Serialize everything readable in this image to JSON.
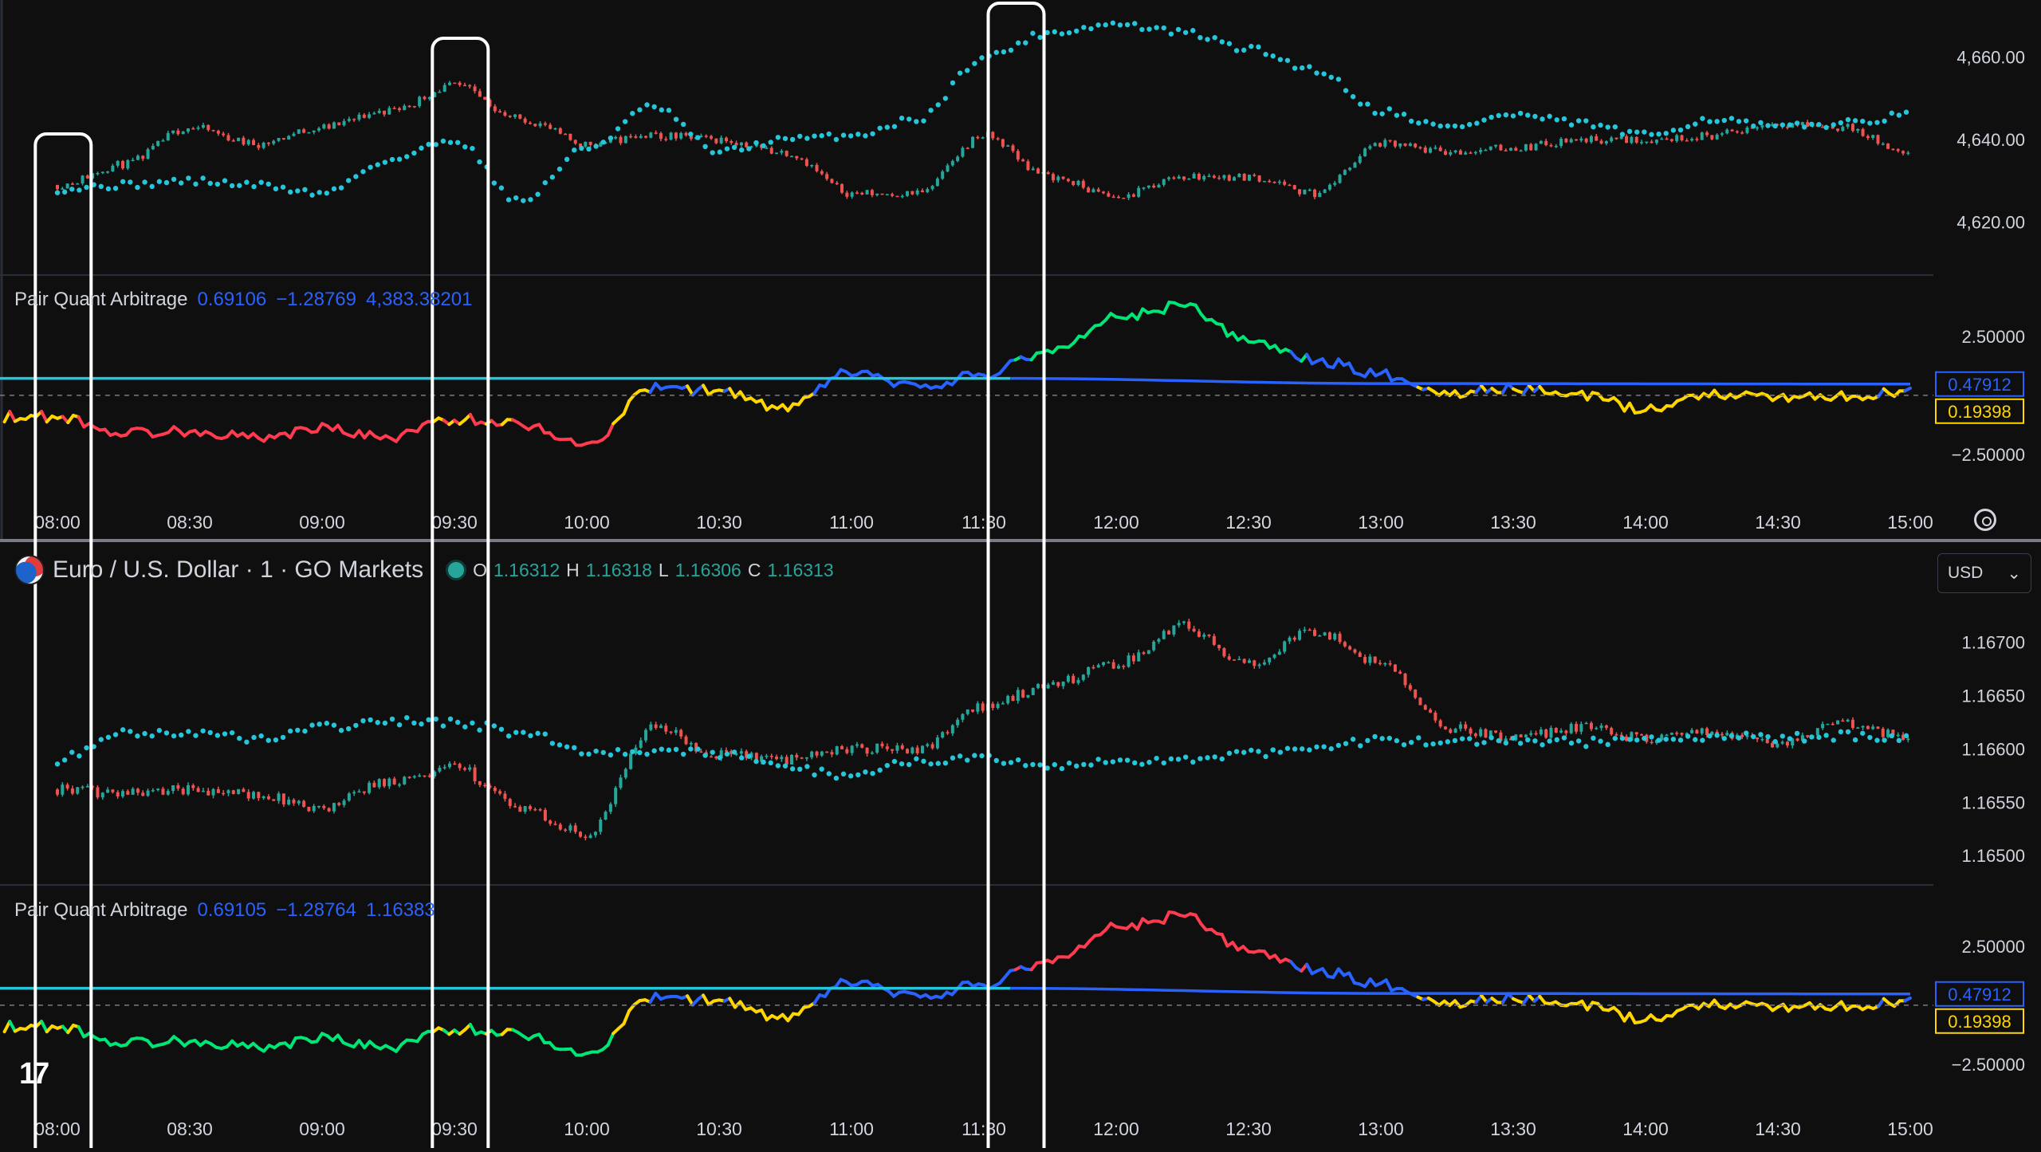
{
  "colors": {
    "background": "#0f0f0f",
    "cyan": "#26c6da",
    "candle_up": "#26a69a",
    "candle_down": "#ef5350",
    "osc_blue": "#2962ff",
    "osc_yellow": "#ffd600",
    "osc_green": "#00e676",
    "osc_red": "#ff3b4f",
    "highlight_box": "#ffffff"
  },
  "top_indicator": {
    "name": "Pair Quant Arbitrage",
    "v1": "0.69106",
    "v2": "−1.28769",
    "v3": "4,383.38201"
  },
  "symbol": {
    "title": "Euro / U.S. Dollar · 1 · GO Markets",
    "open_label": "O",
    "open": "1.16312",
    "high_label": "H",
    "high": "1.16318",
    "low_label": "L",
    "low": "1.16306",
    "close_label": "C",
    "close": "1.16313",
    "currency": "USD"
  },
  "bottom_indicator": {
    "name": "Pair Quant Arbitrage",
    "v1": "0.69105",
    "v2": "−1.28764",
    "v3": "1.16383"
  },
  "chart_data": [
    {
      "type": "line",
      "panel": "price (top instrument)",
      "x_ticks": [
        "08:00",
        "08:30",
        "09:00",
        "09:30",
        "10:00",
        "10:30",
        "11:00",
        "11:30",
        "12:00",
        "12:30",
        "13:00",
        "13:30",
        "14:00",
        "14:30",
        "15:00"
      ],
      "y_ticks": [
        "4,660.00",
        "4,640.00",
        "4,620.00"
      ],
      "series": [
        {
          "style": "candles",
          "x": [
            0,
            0.5,
            1,
            1.5,
            2,
            2.5,
            3,
            3.5,
            4,
            4.5,
            5,
            5.5,
            6,
            6.5,
            7,
            7.5,
            8,
            8.5,
            9,
            9.5,
            10,
            10.5,
            11,
            11.5,
            12,
            12.5,
            13,
            13.5,
            14
          ],
          "values": [
            4629,
            4634,
            4643,
            4639,
            4643,
            4647,
            4653,
            4645,
            4639,
            4641,
            4640,
            4637,
            4627,
            4627,
            4641,
            4631,
            4626,
            4631,
            4631,
            4627,
            4639,
            4637,
            4638,
            4640,
            4640,
            4641,
            4644,
            4643,
            4636
          ]
        },
        {
          "style": "dots",
          "x": [
            0,
            0.5,
            1,
            1.5,
            2,
            2.5,
            3,
            3.5,
            4,
            4.5,
            5,
            5.5,
            6,
            6.5,
            7,
            7.5,
            8,
            8.5,
            9,
            9.5,
            10,
            10.5,
            11,
            11.5,
            12,
            12.5,
            13,
            13.5,
            14
          ],
          "values": [
            4628,
            4629,
            4630,
            4629,
            4627,
            4635,
            4640,
            4625,
            4638,
            4648,
            4637,
            4640,
            4641,
            4645,
            4660,
            4666,
            4668,
            4666,
            4662,
            4657,
            4647,
            4643,
            4646,
            4644,
            4641,
            4645,
            4643,
            4644,
            4646
          ]
        }
      ],
      "ylim": [
        4612,
        4670
      ]
    },
    {
      "type": "line",
      "panel": "Pair Quant Arbitrage (top)",
      "x_ticks": [
        "08:00",
        "08:30",
        "09:00",
        "09:30",
        "10:00",
        "10:30",
        "11:00",
        "11:30",
        "12:00",
        "12:30",
        "13:00",
        "13:30",
        "14:00",
        "14:30",
        "15:00"
      ],
      "y_ticks": [
        "2.50000",
        "−2.50000"
      ],
      "price_labels": [
        "0.47912",
        "0.19398"
      ],
      "series": [
        {
          "style": "oscillator",
          "x": [
            0,
            0.5,
            1,
            1.5,
            2,
            2.5,
            3,
            3.5,
            4,
            4.5,
            5,
            5.5,
            6,
            6.5,
            7,
            7.5,
            8,
            8.5,
            9,
            9.5,
            10,
            10.5,
            11,
            11.5,
            12,
            12.5,
            13,
            13.5,
            14
          ],
          "values": [
            -0.9,
            -1.6,
            -1.5,
            -1.8,
            -1.4,
            -1.8,
            -1.0,
            -1.2,
            -2.1,
            0.3,
            0.2,
            -0.6,
            1.0,
            0.3,
            0.9,
            1.9,
            3.3,
            3.8,
            2.3,
            1.5,
            0.9,
            0.1,
            0.3,
            0.0,
            -0.6,
            0.1,
            -0.1,
            0.0,
            0.1
          ]
        },
        {
          "style": "baseline",
          "x": [
            0,
            7.2,
            10,
            14
          ],
          "values": [
            0.72,
            0.72,
            0.5,
            0.47912
          ]
        }
      ],
      "ylim": [
        -4.2,
        4.6
      ]
    },
    {
      "type": "line",
      "panel": "Euro / U.S. Dollar price",
      "x_ticks": [
        "08:00",
        "08:30",
        "09:00",
        "09:30",
        "10:00",
        "10:30",
        "11:00",
        "11:30",
        "12:00",
        "12:30",
        "13:00",
        "13:30",
        "14:00",
        "14:30",
        "15:00"
      ],
      "y_ticks": [
        "1.16700",
        "1.16650",
        "1.16600",
        "1.16550",
        "1.16500"
      ],
      "series": [
        {
          "style": "candles",
          "x": [
            0,
            0.5,
            1,
            1.5,
            2,
            2.5,
            3,
            3.5,
            4,
            4.5,
            5,
            5.5,
            6,
            6.5,
            7,
            7.5,
            8,
            8.5,
            9,
            9.5,
            10,
            10.5,
            11,
            11.5,
            12,
            12.5,
            13,
            13.5,
            14
          ],
          "values": [
            1.16562,
            1.16558,
            1.16562,
            1.16557,
            1.16545,
            1.1657,
            1.16583,
            1.16545,
            1.1652,
            1.1662,
            1.16595,
            1.1659,
            1.166,
            1.166,
            1.1664,
            1.1666,
            1.1668,
            1.16715,
            1.1668,
            1.1671,
            1.1668,
            1.1662,
            1.1661,
            1.1662,
            1.1661,
            1.16615,
            1.16605,
            1.16625,
            1.1661
          ]
        },
        {
          "style": "dots",
          "x": [
            0,
            0.5,
            1,
            1.5,
            2,
            2.5,
            3,
            3.5,
            4,
            4.5,
            5,
            5.5,
            6,
            6.5,
            7,
            7.5,
            8,
            8.5,
            9,
            9.5,
            10,
            10.5,
            11,
            11.5,
            12,
            12.5,
            13,
            13.5,
            14
          ],
          "values": [
            1.1659,
            1.16615,
            1.16615,
            1.1661,
            1.1662,
            1.16625,
            1.16625,
            1.16615,
            1.16598,
            1.16598,
            1.16595,
            1.16582,
            1.16575,
            1.1659,
            1.1659,
            1.16582,
            1.16588,
            1.1659,
            1.16595,
            1.16603,
            1.16608,
            1.16605,
            1.16608,
            1.16606,
            1.1661,
            1.16612,
            1.1661,
            1.16612,
            1.16612
          ]
        }
      ],
      "ylim": [
        1.1648,
        1.1676
      ]
    },
    {
      "type": "line",
      "panel": "Pair Quant Arbitrage (bottom)",
      "x_ticks": [
        "08:00",
        "08:30",
        "09:00",
        "09:30",
        "10:00",
        "10:30",
        "11:00",
        "11:30",
        "12:00",
        "12:30",
        "13:00",
        "13:30",
        "14:00",
        "14:30",
        "15:00"
      ],
      "y_ticks": [
        "2.50000",
        "−2.50000"
      ],
      "price_labels": [
        "0.47912",
        "0.19398"
      ],
      "series": [
        {
          "style": "oscillator",
          "x": [
            0,
            0.5,
            1,
            1.5,
            2,
            2.5,
            3,
            3.5,
            4,
            4.5,
            5,
            5.5,
            6,
            6.5,
            7,
            7.5,
            8,
            8.5,
            9,
            9.5,
            10,
            10.5,
            11,
            11.5,
            12,
            12.5,
            13,
            13.5,
            14
          ],
          "values": [
            -0.9,
            -1.6,
            -1.5,
            -1.8,
            -1.4,
            -1.8,
            -1.0,
            -1.2,
            -2.1,
            0.3,
            0.2,
            -0.6,
            1.0,
            0.3,
            0.9,
            1.9,
            3.3,
            3.8,
            2.3,
            1.5,
            0.9,
            0.1,
            0.3,
            0.0,
            -0.6,
            0.1,
            -0.1,
            0.0,
            0.1
          ]
        },
        {
          "style": "baseline",
          "x": [
            0,
            7.2,
            10,
            14
          ],
          "values": [
            0.72,
            0.72,
            0.5,
            0.47912
          ]
        }
      ],
      "ylim": [
        -4.2,
        4.6
      ]
    }
  ],
  "highlight_box_times": [
    0.05,
    3.05,
    7.25
  ]
}
